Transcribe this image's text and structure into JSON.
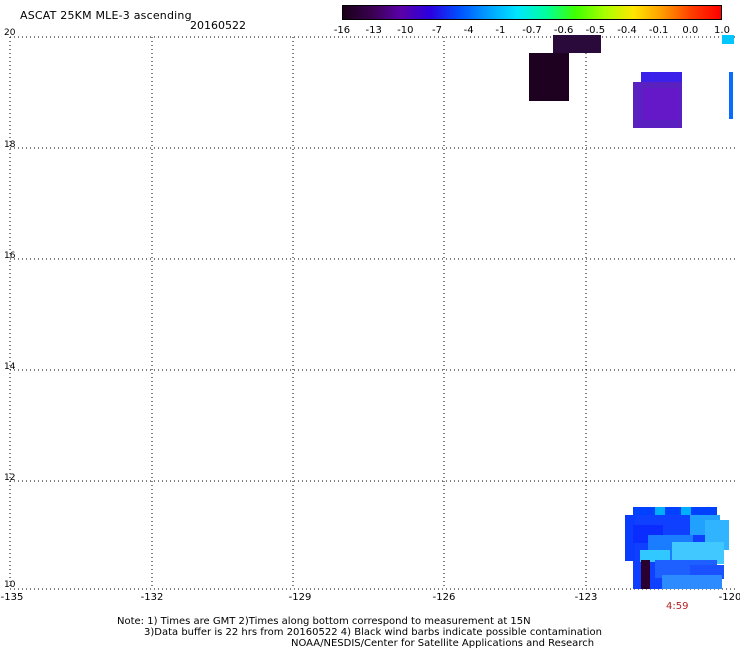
{
  "header": {
    "title": "ASCAT 25KM MLE-3 ascending",
    "date": "20160522"
  },
  "colorbar": {
    "labels": [
      "-16",
      "-13",
      "-10",
      "-7",
      "-4",
      "-1",
      "-0.7",
      "-0.6",
      "-0.5",
      "-0.4",
      "-0.1",
      "0.0",
      "1.0"
    ],
    "colors": [
      "#1a0018",
      "#3a0050",
      "#5a00a8",
      "#2a00e0",
      "#0050ff",
      "#00a0ff",
      "#00e6ff",
      "#00ff9a",
      "#40ff00",
      "#a8ff00",
      "#ffe600",
      "#ff9a00",
      "#ff3c00",
      "#ff0000"
    ]
  },
  "map": {
    "lat_labels": [
      "20",
      "18",
      "16",
      "14",
      "12",
      "10"
    ],
    "lon_labels": [
      "-135",
      "-132",
      "-129",
      "-126",
      "-123",
      "-120"
    ],
    "time_label": "4:59"
  },
  "notes": {
    "line1": "Note: 1) Times are GMT 2)Times along bottom correspond to measurement at 15N",
    "line2": "3)Data buffer is 22 hrs from 20160522 4) Black wind barbs indicate possible contamination",
    "line3": "NOAA/NESDIS/Center for Satellite Applications and Research"
  }
}
